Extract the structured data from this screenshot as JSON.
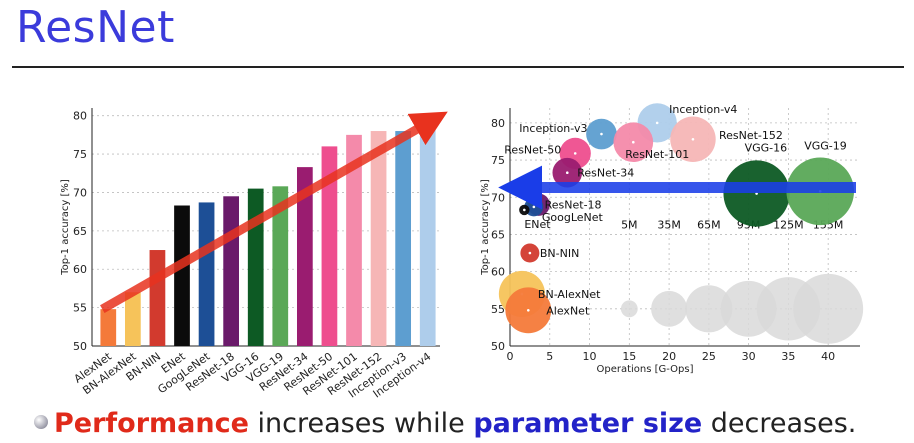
{
  "slide": {
    "title": "ResNet",
    "bullet": {
      "highlight1": "Performance",
      "text1": " increases while ",
      "highlight2": "parameter size",
      "text2": " decreases."
    }
  },
  "chart_data": [
    {
      "type": "bar",
      "ylabel": "Top-1 accuracy [%]",
      "ylim": [
        50,
        81
      ],
      "yticks": [
        50,
        55,
        60,
        65,
        70,
        75,
        80
      ],
      "grid": true,
      "categories": [
        "AlexNet",
        "BN-AlexNet",
        "BN-NIN",
        "ENet",
        "GoogLeNet",
        "ResNet-18",
        "VGG-16",
        "VGG-19",
        "ResNet-34",
        "ResNet-50",
        "ResNet-101",
        "ResNet-152",
        "Inception-v3",
        "Inception-v4"
      ],
      "values": [
        54.8,
        57.0,
        62.5,
        68.3,
        68.7,
        69.5,
        70.5,
        70.8,
        73.3,
        76.0,
        77.5,
        78.0,
        78.0,
        80.0
      ],
      "colors": [
        "#f47a3a",
        "#f6c35a",
        "#d23a2e",
        "#0b0b0b",
        "#1d4f96",
        "#6a1a6a",
        "#0d5a24",
        "#5aa857",
        "#9a1c70",
        "#ee4e8e",
        "#f48aaa",
        "#f6b6b6",
        "#5d9ed0",
        "#aecdeb"
      ],
      "annotation": {
        "type": "arrow",
        "color": "#e8321e",
        "from_category": "AlexNet",
        "from_value": 54.8,
        "to_category": "Inception-v4",
        "to_value": 80.0
      }
    },
    {
      "type": "scatter",
      "xlabel": "Operations [G-Ops]",
      "ylabel": "Top-1 accuracy [%]",
      "xlim": [
        0,
        44
      ],
      "ylim": [
        50,
        82
      ],
      "xticks": [
        0,
        5,
        10,
        15,
        20,
        25,
        30,
        35,
        40
      ],
      "yticks": [
        50,
        55,
        60,
        65,
        70,
        75,
        80
      ],
      "grid": true,
      "points": [
        {
          "name": "Inception-v4",
          "x": 18.5,
          "y": 80.0,
          "params_m": 43,
          "color": "#aecdeb"
        },
        {
          "name": "Inception-v3",
          "x": 11.5,
          "y": 78.5,
          "params_m": 24,
          "color": "#5d9ed0"
        },
        {
          "name": "ResNet-152",
          "x": 23.0,
          "y": 77.8,
          "params_m": 60,
          "color": "#f6b6b6"
        },
        {
          "name": "ResNet-101",
          "x": 15.5,
          "y": 77.4,
          "params_m": 44,
          "color": "#f48aaa"
        },
        {
          "name": "ResNet-50",
          "x": 8.2,
          "y": 75.9,
          "params_m": 25,
          "color": "#ee4e8e"
        },
        {
          "name": "ResNet-34",
          "x": 7.2,
          "y": 73.3,
          "params_m": 22,
          "color": "#9a1c70"
        },
        {
          "name": "ResNet-18",
          "x": 3.6,
          "y": 69.0,
          "params_m": 11,
          "color": "#6a1a6a"
        },
        {
          "name": "GoogLeNet",
          "x": 3.0,
          "y": 68.7,
          "params_m": 7,
          "color": "#1d4f96"
        },
        {
          "name": "ENet",
          "x": 1.8,
          "y": 68.3,
          "params_m": 1,
          "color": "#0b0b0b"
        },
        {
          "name": "VGG-16",
          "x": 31.0,
          "y": 70.5,
          "params_m": 138,
          "color": "#0d5a24"
        },
        {
          "name": "VGG-19",
          "x": 39.0,
          "y": 70.8,
          "params_m": 144,
          "color": "#5aa857"
        },
        {
          "name": "BN-NIN",
          "x": 2.5,
          "y": 62.5,
          "params_m": 7,
          "color": "#d23a2e"
        },
        {
          "name": "BN-AlexNet",
          "x": 1.5,
          "y": 57.0,
          "params_m": 62,
          "color": "#f6c35a"
        },
        {
          "name": "AlexNet",
          "x": 2.3,
          "y": 54.8,
          "params_m": 61,
          "color": "#f47a3a"
        }
      ],
      "size_legend": [
        {
          "label": "5M",
          "x": 15.0,
          "y": 55.0,
          "params_m": 5
        },
        {
          "label": "35M",
          "x": 20.0,
          "y": 55.0,
          "params_m": 35
        },
        {
          "label": "65M",
          "x": 25.0,
          "y": 55.0,
          "params_m": 65
        },
        {
          "label": "95M",
          "x": 30.0,
          "y": 55.0,
          "params_m": 95
        },
        {
          "label": "125M",
          "x": 35.0,
          "y": 55.0,
          "params_m": 125
        },
        {
          "label": "155M",
          "x": 40.0,
          "y": 55.0,
          "params_m": 155
        }
      ],
      "annotation": {
        "type": "arrow",
        "color": "#1a3de8",
        "from_x": 44.0,
        "from_y": 70.5,
        "to_x": 0.0,
        "to_y": 70.5
      }
    }
  ]
}
